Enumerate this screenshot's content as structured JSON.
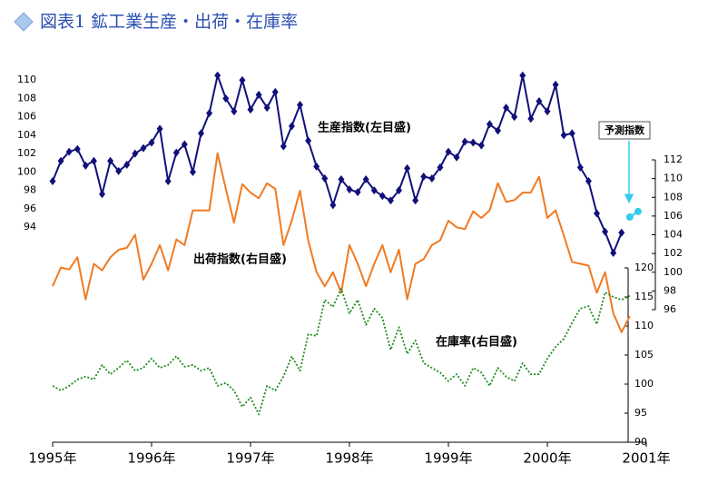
{
  "chart_data": {
    "type": "line",
    "title": "図表1 鉱工業生産・出荷・在庫率",
    "x": [
      "1995-01",
      "1995-02",
      "1995-03",
      "1995-04",
      "1995-05",
      "1995-06",
      "1995-07",
      "1995-08",
      "1995-09",
      "1995-10",
      "1995-11",
      "1995-12",
      "1996-01",
      "1996-02",
      "1996-03",
      "1996-04",
      "1996-05",
      "1996-06",
      "1996-07",
      "1996-08",
      "1996-09",
      "1996-10",
      "1996-11",
      "1996-12",
      "1997-01",
      "1997-02",
      "1997-03",
      "1997-04",
      "1997-05",
      "1997-06",
      "1997-07",
      "1997-08",
      "1997-09",
      "1997-10",
      "1997-11",
      "1997-12",
      "1998-01",
      "1998-02",
      "1998-03",
      "1998-04",
      "1998-05",
      "1998-06",
      "1998-07",
      "1998-08",
      "1998-09",
      "1998-10",
      "1998-11",
      "1998-12",
      "1999-01",
      "1999-02",
      "1999-03",
      "1999-04",
      "1999-05",
      "1999-06",
      "1999-07",
      "1999-08",
      "1999-09",
      "1999-10",
      "1999-11",
      "1999-12",
      "2000-01",
      "2000-02",
      "2000-03",
      "2000-04",
      "2000-05",
      "2000-06",
      "2000-07",
      "2000-08",
      "2000-09",
      "2000-10",
      "2000-11",
      "2000-12"
    ],
    "xlim": [
      "1995-01",
      "2001-01"
    ],
    "xticks": [
      {
        "value": "1995-01",
        "label": "1995年"
      },
      {
        "value": "1996-01",
        "label": "1996年"
      },
      {
        "value": "1997-01",
        "label": "1997年"
      },
      {
        "value": "1998-01",
        "label": "1998年"
      },
      {
        "value": "1999-01",
        "label": "1999年"
      },
      {
        "value": "2000-01",
        "label": "2000年"
      },
      {
        "value": "2001-01",
        "label": "2001年"
      }
    ],
    "ylim": [
      90,
      111
    ],
    "yticks": [
      94,
      96,
      98,
      100,
      102,
      104,
      106,
      108,
      110
    ],
    "y2lim": [
      92,
      114
    ],
    "y2ticks": [
      96,
      98,
      100,
      102,
      104,
      106,
      108,
      110,
      112
    ],
    "y3lim": [
      90,
      120
    ],
    "y3ticks": [
      90,
      95,
      100,
      105,
      110,
      115,
      120
    ],
    "series": [
      {
        "name": "生産指数(左目盛)",
        "color": "#10107a",
        "axis": "y",
        "marker": "diamond",
        "values": [
          99,
          101.2,
          102.2,
          102.5,
          100.7,
          101.2,
          97.6,
          101.2,
          100.1,
          100.8,
          102,
          102.6,
          103.2,
          104.7,
          99,
          102.1,
          103,
          100,
          104.2,
          106.4,
          110.5,
          108,
          106.6,
          110,
          106.8,
          108.4,
          107,
          108.7,
          102.8,
          105,
          107.3,
          103.4,
          100.6,
          99.3,
          96.4,
          99.2,
          98.1,
          97.8,
          99.2,
          98,
          97.4,
          96.9,
          98,
          100.4,
          96.9,
          99.5,
          99.3,
          100.5,
          102.2,
          101.6,
          103.3,
          103.2,
          102.9,
          105.2,
          104.5,
          107,
          106,
          110.5,
          105.8,
          107.7,
          106.6,
          109.5,
          104,
          104.2,
          100.5,
          99,
          95.5,
          93.5,
          91.2,
          93.4,
          null,
          null
        ]
      },
      {
        "name": "出荷指数(右目盛)",
        "color": "#f07a22",
        "axis": "y2",
        "values": [
          98.5,
          100.5,
          100.3,
          101.6,
          97.1,
          100.9,
          100.2,
          101.6,
          102.4,
          102.6,
          104.0,
          99.2,
          100.9,
          102.9,
          100.2,
          103.5,
          102.9,
          106.6,
          106.6,
          106.6,
          112.7,
          108.9,
          105.3,
          109.4,
          108.5,
          107.9,
          109.5,
          108.9,
          102.9,
          105.5,
          108.7,
          103.4,
          100.0,
          98.5,
          100.0,
          97.8,
          102.9,
          100.9,
          98.5,
          100.9,
          102.9,
          100.0,
          102.4,
          97.1,
          100.9,
          101.4,
          102.9,
          103.4,
          105.5,
          104.8,
          104.6,
          106.5,
          105.8,
          106.6,
          109.5,
          107.5,
          107.7,
          108.5,
          108.5,
          110.2,
          105.8,
          106.6,
          103.9,
          101.1,
          100.9,
          100.7,
          97.8,
          100.0,
          95.6,
          93.6,
          95.3,
          null
        ]
      },
      {
        "name": "在庫率(右目盛)",
        "color": "#1e8c1e",
        "axis": "y3",
        "dash": true,
        "values": [
          99.7,
          98.9,
          99.7,
          100.8,
          101.3,
          100.8,
          103.3,
          101.7,
          102.8,
          104.1,
          102.3,
          102.8,
          104.4,
          102.8,
          103.3,
          104.8,
          103.0,
          103.3,
          102.3,
          102.8,
          99.7,
          100.2,
          98.9,
          96.1,
          97.7,
          94.8,
          99.7,
          98.9,
          101.3,
          104.8,
          102.3,
          108.6,
          108.3,
          114.5,
          113.3,
          116.4,
          112.2,
          114.5,
          110.2,
          113.0,
          111.4,
          105.9,
          109.8,
          105.2,
          107.5,
          103.6,
          102.8,
          102.0,
          100.5,
          101.7,
          99.7,
          102.8,
          102.0,
          99.7,
          102.8,
          101.3,
          100.5,
          103.6,
          101.7,
          101.7,
          104.4,
          106.4,
          107.8,
          110.6,
          113.0,
          113.4,
          110.3,
          115.8,
          115.0,
          114.5,
          115.2,
          null
        ]
      },
      {
        "name": "予測指数",
        "color": "#33ccee",
        "axis": "y",
        "marker": "circle",
        "values": [
          null,
          null,
          null,
          null,
          null,
          null,
          null,
          null,
          null,
          null,
          null,
          null,
          null,
          null,
          null,
          null,
          null,
          null,
          null,
          null,
          null,
          null,
          null,
          null,
          null,
          null,
          null,
          null,
          null,
          null,
          null,
          null,
          null,
          null,
          null,
          null,
          null,
          null,
          null,
          null,
          null,
          null,
          null,
          null,
          null,
          null,
          null,
          null,
          null,
          null,
          null,
          null,
          null,
          null,
          null,
          null,
          null,
          null,
          null,
          null,
          null,
          null,
          null,
          null,
          null,
          null,
          null,
          null,
          null,
          null,
          95.1,
          95.7
        ]
      }
    ]
  }
}
